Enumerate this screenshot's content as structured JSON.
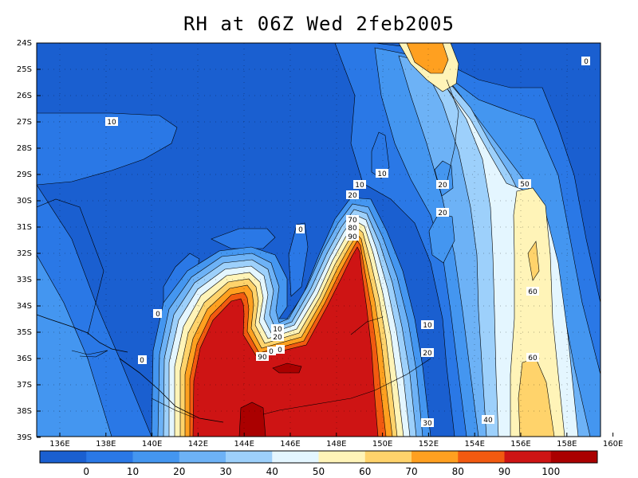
{
  "title": "RH at 06Z Wed 2feb2005",
  "y_ticks": [
    "24S",
    "25S",
    "26S",
    "27S",
    "28S",
    "29S",
    "30S",
    "31S",
    "32S",
    "33S",
    "34S",
    "35S",
    "36S",
    "37S",
    "38S",
    "39S"
  ],
  "x_ticks": [
    "136E",
    "138E",
    "140E",
    "142E",
    "144E",
    "146E",
    "148E",
    "150E",
    "152E",
    "154E",
    "156E",
    "158E",
    "160E"
  ],
  "colorbar": {
    "colors": [
      "#1a5fd0",
      "#2a78e6",
      "#4496f0",
      "#6db2f6",
      "#9dd0fb",
      "#e4f6ff",
      "#fff4b8",
      "#ffd36b",
      "#ffa020",
      "#f25a10",
      "#ce1414",
      "#aa0000"
    ],
    "labels": [
      "0",
      "10",
      "20",
      "30",
      "40",
      "50",
      "60",
      "70",
      "80",
      "90",
      "100"
    ]
  },
  "contour_labels": [
    {
      "text": "10"
    },
    {
      "text": "0"
    },
    {
      "text": "0"
    },
    {
      "text": "0"
    },
    {
      "text": "10"
    },
    {
      "text": "20"
    },
    {
      "text": "20"
    },
    {
      "text": "10"
    },
    {
      "text": "20"
    },
    {
      "text": "70"
    },
    {
      "text": "60"
    },
    {
      "text": "80"
    },
    {
      "text": "90"
    },
    {
      "text": "0"
    },
    {
      "text": "10"
    },
    {
      "text": "20"
    },
    {
      "text": "30"
    },
    {
      "text": "40"
    },
    {
      "text": "50"
    },
    {
      "text": "60"
    },
    {
      "text": "60"
    },
    {
      "text": "10"
    },
    {
      "text": "20"
    },
    {
      "text": "90"
    },
    {
      "text": "0"
    },
    {
      "text": "0"
    }
  ],
  "chart_data": {
    "type": "heatmap",
    "title": "RH at 06Z Wed 2feb2005",
    "xlabel": "",
    "ylabel": "",
    "x_range": [
      "135.5E",
      "160E"
    ],
    "y_range": [
      "24S",
      "39S"
    ],
    "colorbar_levels": [
      0,
      10,
      20,
      30,
      40,
      50,
      60,
      70,
      80,
      90,
      100
    ],
    "grid": true
  }
}
